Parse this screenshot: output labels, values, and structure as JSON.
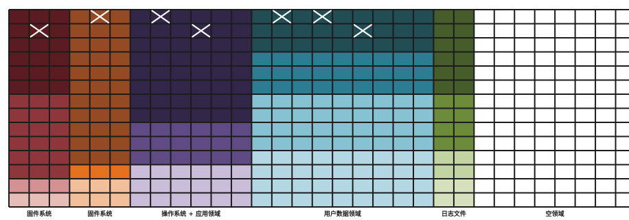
{
  "legend_labels": [
    "固件系统",
    "固件系统",
    "操作系统 + 应用领域",
    "用户数据领域",
    "日志文件",
    "空领域"
  ],
  "grid": {
    "rows": 14,
    "total_columns": 31
  },
  "regions": [
    {
      "label": "固件系统",
      "columns": 3,
      "bands": [
        {
          "rows": 6,
          "color": "#5a1c21"
        },
        {
          "rows": 6,
          "color": "#8f363d"
        },
        {
          "rows": 1,
          "color": "#d49093"
        },
        {
          "rows": 1,
          "color": "#e6bdb7"
        }
      ],
      "marked_cells": [
        [
          1,
          1
        ]
      ]
    },
    {
      "label": "固件系统",
      "columns": 3,
      "bands": [
        {
          "rows": 11,
          "color": "#944a22"
        },
        {
          "rows": 1,
          "color": "#e5711f"
        },
        {
          "rows": 2,
          "color": "#f2bf9a"
        }
      ],
      "marked_cells": [
        [
          0,
          1
        ]
      ]
    },
    {
      "label": "操作系统 + 应用领域",
      "columns": 6,
      "bands": [
        {
          "rows": 8,
          "color": "#322749"
        },
        {
          "rows": 3,
          "color": "#5f4a83"
        },
        {
          "rows": 3,
          "color": "#c9bdd9"
        }
      ],
      "marked_cells": [
        [
          0,
          1
        ],
        [
          1,
          3
        ]
      ]
    },
    {
      "label": "用户数据领域",
      "columns": 9,
      "bands": [
        {
          "rows": 3,
          "color": "#214d55"
        },
        {
          "rows": 3,
          "color": "#2d7d92"
        },
        {
          "rows": 4,
          "color": "#86c2d1"
        },
        {
          "rows": 4,
          "color": "#b3d8e3"
        }
      ],
      "marked_cells": [
        [
          0,
          1
        ],
        [
          0,
          3
        ],
        [
          1,
          5
        ]
      ]
    },
    {
      "label": "日志文件",
      "columns": 2,
      "bands": [
        {
          "rows": 6,
          "color": "#465c2b"
        },
        {
          "rows": 4,
          "color": "#6c8c3c"
        },
        {
          "rows": 2,
          "color": "#c3d4a3"
        },
        {
          "rows": 2,
          "color": "#d5e0bd"
        }
      ],
      "marked_cells": []
    },
    {
      "label": "空领域",
      "columns": 8,
      "bands": [
        {
          "rows": 14,
          "color": "#ffffff"
        }
      ],
      "marked_cells": []
    }
  ],
  "colors": {
    "grid_line": "#1c1c1c",
    "mark": "#ffffff"
  }
}
